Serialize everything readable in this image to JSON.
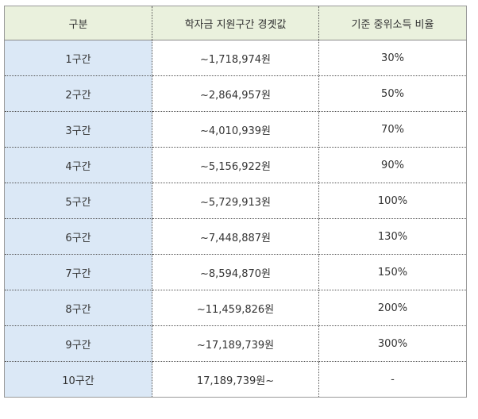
{
  "table": {
    "headers": [
      "구분",
      "학자금 지원구간 경곗값",
      "기준 중위소득 비율"
    ],
    "rows": [
      {
        "bracket": "1구간",
        "threshold": "~1,718,974원",
        "ratio": "30%"
      },
      {
        "bracket": "2구간",
        "threshold": "~2,864,957원",
        "ratio": "50%"
      },
      {
        "bracket": "3구간",
        "threshold": "~4,010,939원",
        "ratio": "70%"
      },
      {
        "bracket": "4구간",
        "threshold": "~5,156,922원",
        "ratio": "90%"
      },
      {
        "bracket": "5구간",
        "threshold": "~5,729,913원",
        "ratio": "100%"
      },
      {
        "bracket": "6구간",
        "threshold": "~7,448,887원",
        "ratio": "130%"
      },
      {
        "bracket": "7구간",
        "threshold": "~8,594,870원",
        "ratio": "150%"
      },
      {
        "bracket": "8구간",
        "threshold": "~11,459,826원",
        "ratio": "200%"
      },
      {
        "bracket": "9구간",
        "threshold": "~17,189,739원",
        "ratio": "300%"
      },
      {
        "bracket": "10구간",
        "threshold": "17,189,739원~",
        "ratio": "-"
      }
    ]
  },
  "colors": {
    "header_background": "#eaf1dd",
    "first_column_background": "#dbe8f6"
  }
}
